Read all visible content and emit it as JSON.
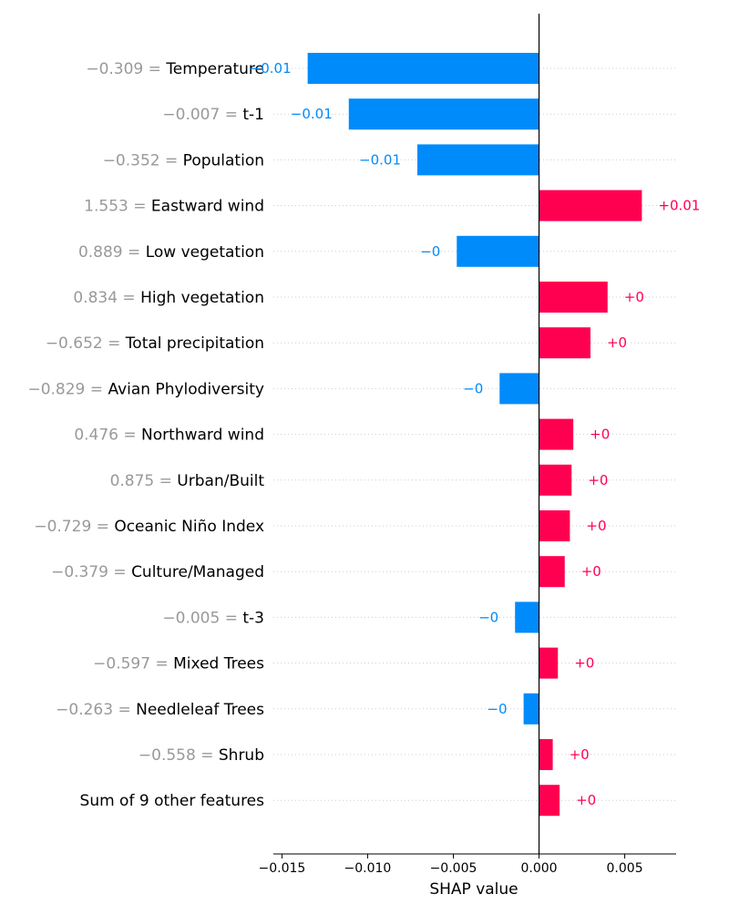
{
  "chart_data": {
    "type": "bar",
    "orientation": "horizontal",
    "title": "",
    "xlabel": "SHAP value",
    "ylabel": "",
    "xlim": [
      -0.0155,
      0.008
    ],
    "xticks": [
      -0.015,
      -0.01,
      -0.005,
      0.0,
      0.005
    ],
    "xtick_labels": [
      "−0.015",
      "−0.010",
      "−0.005",
      "0.000",
      "0.005"
    ],
    "grid": "dotted horizontal row lines",
    "colors": {
      "positive": "#ff0051",
      "negative": "#008bfb",
      "feature_value": "#999999",
      "text": "#000000"
    },
    "features": [
      {
        "value": "−0.309",
        "name": "Temperature",
        "shap": -0.0135,
        "label": "−0.01"
      },
      {
        "value": "−0.007",
        "name": "t-1",
        "shap": -0.0111,
        "label": "−0.01"
      },
      {
        "value": "−0.352",
        "name": "Population",
        "shap": -0.0071,
        "label": "−0.01"
      },
      {
        "value": "1.553",
        "name": "Eastward wind",
        "shap": 0.006,
        "label": "+0.01"
      },
      {
        "value": "0.889",
        "name": "Low vegetation",
        "shap": -0.0048,
        "label": "−0"
      },
      {
        "value": "0.834",
        "name": "High vegetation",
        "shap": 0.004,
        "label": "+0"
      },
      {
        "value": "−0.652",
        "name": "Total precipitation",
        "shap": 0.003,
        "label": "+0"
      },
      {
        "value": "−0.829",
        "name": "Avian Phylodiversity",
        "shap": -0.0023,
        "label": "−0"
      },
      {
        "value": "0.476",
        "name": "Northward wind",
        "shap": 0.002,
        "label": "+0"
      },
      {
        "value": "0.875",
        "name": "Urban/Built",
        "shap": 0.0019,
        "label": "+0"
      },
      {
        "value": "−0.729",
        "name": "Oceanic Niño Index",
        "shap": 0.0018,
        "label": "+0"
      },
      {
        "value": "−0.379",
        "name": "Culture/Managed",
        "shap": 0.0015,
        "label": "+0"
      },
      {
        "value": "−0.005",
        "name": "t-3",
        "shap": -0.0014,
        "label": "−0"
      },
      {
        "value": "−0.597",
        "name": "Mixed Trees",
        "shap": 0.0011,
        "label": "+0"
      },
      {
        "value": "−0.263",
        "name": "Needleleaf Trees",
        "shap": -0.0009,
        "label": "−0"
      },
      {
        "value": "−0.558",
        "name": "Shrub",
        "shap": 0.0008,
        "label": "+0"
      },
      {
        "value": "",
        "name": "Sum of 9 other features",
        "shap": 0.0012,
        "label": "+0"
      }
    ]
  }
}
